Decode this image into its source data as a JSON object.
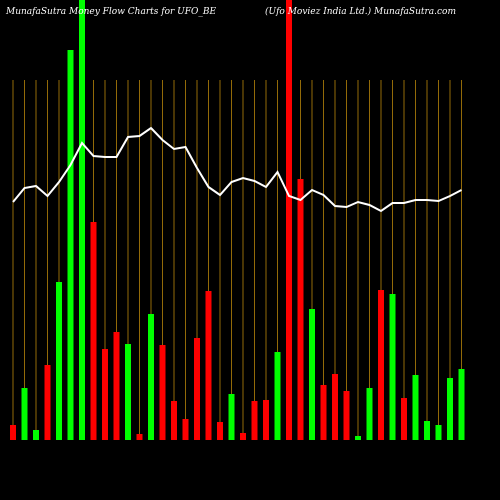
{
  "chart_data": {
    "type": "bar",
    "title": "MunafaSutra  Money Flow  Charts for UFO_BE",
    "subtitle": "(Ufo Moviez India Ltd.) MunafaSutra.com",
    "categories": [
      null,
      null,
      null,
      null,
      null,
      null,
      null,
      null,
      null,
      null,
      null,
      null,
      null,
      null,
      null,
      null,
      null,
      null,
      null,
      null,
      null,
      null,
      null,
      null,
      null,
      null,
      null,
      null,
      null,
      null,
      null,
      null,
      null,
      null,
      null,
      null,
      null,
      null,
      null,
      null
    ],
    "values": [
      15,
      52,
      10,
      75,
      158,
      390,
      445,
      218,
      91,
      108,
      96,
      6,
      126,
      95,
      39,
      21,
      102,
      149,
      18,
      46,
      7,
      39,
      40,
      88,
      445,
      261,
      131,
      55,
      66,
      49,
      4,
      52,
      150,
      146,
      42,
      65,
      19,
      15,
      62,
      71
    ],
    "bar_colors": [
      "#ff0000",
      "#00ff00",
      "#00ff00",
      "#ff0000",
      "#00ff00",
      "#00ff00",
      "#00ff00",
      "#ff0000",
      "#ff0000",
      "#ff0000",
      "#00ff00",
      "#ff0000",
      "#00ff00",
      "#ff0000",
      "#ff0000",
      "#ff0000",
      "#ff0000",
      "#ff0000",
      "#ff0000",
      "#00ff00",
      "#ff0000",
      "#ff0000",
      "#ff0000",
      "#00ff00",
      "#ff0000",
      "#ff0000",
      "#00ff00",
      "#ff0000",
      "#ff0000",
      "#ff0000",
      "#00ff00",
      "#00ff00",
      "#ff0000",
      "#00ff00",
      "#ff0000",
      "#00ff00",
      "#00ff00",
      "#00ff00",
      "#00ff00",
      "#00ff00"
    ],
    "line": {
      "color": "#ffffff",
      "values": [
        238,
        252,
        254,
        244,
        258,
        275,
        297,
        284,
        283,
        283,
        303,
        304,
        312,
        300,
        291,
        293,
        272,
        253,
        245,
        258,
        262,
        259,
        253,
        268,
        244,
        240,
        250,
        245,
        234,
        233,
        238,
        235,
        229,
        237,
        237,
        240,
        240,
        239,
        244,
        250
      ]
    },
    "ylim": [
      0,
      440
    ],
    "grid_color": "#b8860b"
  }
}
